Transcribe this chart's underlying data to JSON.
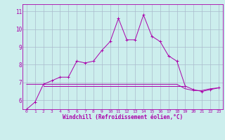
{
  "xlabel": "Windchill (Refroidissement éolien,°C)",
  "xlim": [
    -0.5,
    23.5
  ],
  "ylim": [
    5.5,
    11.4
  ],
  "yticks": [
    6,
    7,
    8,
    9,
    10,
    11
  ],
  "xticks": [
    0,
    1,
    2,
    3,
    4,
    5,
    6,
    7,
    8,
    9,
    10,
    11,
    12,
    13,
    14,
    15,
    16,
    17,
    18,
    19,
    20,
    21,
    22,
    23
  ],
  "bg_color": "#cceeed",
  "grid_color": "#aabbcc",
  "line_color": "#aa00aa",
  "line1_x": [
    0,
    1,
    2,
    3,
    4,
    5,
    6,
    7,
    8,
    9,
    10,
    11,
    12,
    13,
    14,
    15,
    16,
    17,
    18,
    19,
    20,
    21,
    22,
    23
  ],
  "line1_y": [
    5.5,
    5.9,
    6.9,
    7.1,
    7.3,
    7.3,
    8.2,
    8.1,
    8.2,
    8.8,
    9.3,
    10.6,
    9.4,
    9.4,
    10.8,
    9.6,
    9.3,
    8.5,
    8.2,
    6.8,
    6.6,
    6.5,
    6.6,
    6.7
  ],
  "line2_x": [
    0,
    1,
    2,
    3,
    4,
    5,
    6,
    7,
    8,
    9,
    10,
    11,
    12,
    13,
    14,
    15,
    16,
    17,
    18,
    19,
    20,
    21,
    22,
    23
  ],
  "line2_y": [
    6.9,
    6.9,
    6.9,
    6.9,
    6.9,
    6.9,
    6.9,
    6.9,
    6.9,
    6.9,
    6.9,
    6.9,
    6.9,
    6.9,
    6.9,
    6.9,
    6.9,
    6.9,
    6.9,
    6.65,
    6.55,
    6.55,
    6.65,
    6.7
  ],
  "line3_x": [
    2,
    3,
    4,
    5,
    6,
    7,
    8,
    9,
    10,
    11,
    12,
    13,
    14,
    15,
    16,
    17,
    18,
    19
  ],
  "line3_y": [
    6.8,
    6.8,
    6.8,
    6.8,
    6.8,
    6.8,
    6.8,
    6.8,
    6.8,
    6.8,
    6.8,
    6.8,
    6.8,
    6.8,
    6.8,
    6.8,
    6.8,
    6.8
  ]
}
